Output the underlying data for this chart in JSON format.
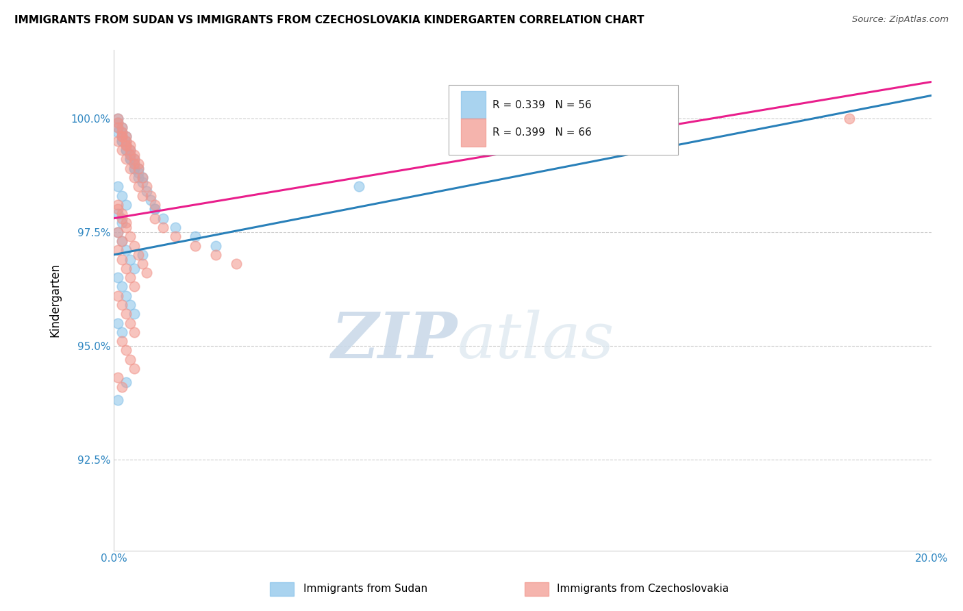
{
  "title": "IMMIGRANTS FROM SUDAN VS IMMIGRANTS FROM CZECHOSLOVAKIA KINDERGARTEN CORRELATION CHART",
  "source": "Source: ZipAtlas.com",
  "ylabel": "Kindergarten",
  "y_ticks": [
    92.5,
    95.0,
    97.5,
    100.0
  ],
  "y_tick_labels": [
    "92.5%",
    "95.0%",
    "97.5%",
    "100.0%"
  ],
  "xlim": [
    0.0,
    0.2
  ],
  "ylim": [
    90.5,
    101.5
  ],
  "x_tick_positions": [
    0.0,
    0.05,
    0.1,
    0.15,
    0.2
  ],
  "x_tick_labels": [
    "0.0%",
    "",
    "",
    "",
    "20.0%"
  ],
  "legend1_label": "R = 0.339   N = 56",
  "legend2_label": "R = 0.399   N = 66",
  "legend1_color": "#85c1e9",
  "legend2_color": "#f1948a",
  "series1_color": "#85c1e9",
  "series2_color": "#f1948a",
  "trendline1_color": "#2980b9",
  "trendline2_color": "#e91e8c",
  "watermark_zip": "ZIP",
  "watermark_atlas": "atlas",
  "sudan_x": [
    0.001,
    0.002,
    0.003,
    0.004,
    0.005,
    0.006,
    0.007,
    0.008,
    0.009,
    0.01,
    0.002,
    0.003,
    0.004,
    0.005,
    0.001,
    0.002,
    0.003,
    0.004,
    0.005,
    0.006,
    0.001,
    0.002,
    0.003,
    0.001,
    0.002,
    0.003,
    0.004,
    0.005,
    0.006,
    0.007,
    0.001,
    0.002,
    0.003,
    0.001,
    0.002,
    0.001,
    0.002,
    0.003,
    0.004,
    0.005,
    0.01,
    0.012,
    0.015,
    0.02,
    0.025,
    0.001,
    0.002,
    0.003,
    0.004,
    0.005,
    0.001,
    0.002,
    0.007,
    0.06,
    0.001,
    0.003
  ],
  "sudan_y": [
    99.8,
    99.6,
    99.4,
    99.2,
    99.0,
    98.8,
    98.6,
    98.4,
    98.2,
    98.0,
    99.5,
    99.3,
    99.1,
    98.9,
    99.7,
    99.5,
    99.3,
    99.1,
    98.9,
    98.7,
    100.0,
    99.8,
    99.6,
    99.9,
    99.7,
    99.5,
    99.3,
    99.1,
    98.9,
    98.7,
    98.5,
    98.3,
    98.1,
    97.9,
    97.7,
    97.5,
    97.3,
    97.1,
    96.9,
    96.7,
    98.0,
    97.8,
    97.6,
    97.4,
    97.2,
    96.5,
    96.3,
    96.1,
    95.9,
    95.7,
    95.5,
    95.3,
    97.0,
    98.5,
    93.8,
    94.2
  ],
  "czech_x": [
    0.001,
    0.002,
    0.003,
    0.004,
    0.005,
    0.006,
    0.007,
    0.008,
    0.009,
    0.01,
    0.002,
    0.003,
    0.004,
    0.005,
    0.001,
    0.002,
    0.003,
    0.004,
    0.005,
    0.006,
    0.001,
    0.002,
    0.003,
    0.001,
    0.002,
    0.003,
    0.004,
    0.005,
    0.006,
    0.007,
    0.001,
    0.002,
    0.003,
    0.001,
    0.002,
    0.001,
    0.002,
    0.003,
    0.004,
    0.005,
    0.01,
    0.012,
    0.015,
    0.02,
    0.025,
    0.001,
    0.002,
    0.003,
    0.004,
    0.005,
    0.03,
    0.001,
    0.002,
    0.003,
    0.004,
    0.005,
    0.006,
    0.007,
    0.008,
    0.18,
    0.002,
    0.003,
    0.004,
    0.005,
    0.001,
    0.002
  ],
  "czech_y": [
    99.9,
    99.7,
    99.5,
    99.3,
    99.1,
    98.9,
    98.7,
    98.5,
    98.3,
    98.1,
    99.6,
    99.4,
    99.2,
    99.0,
    100.0,
    99.8,
    99.6,
    99.4,
    99.2,
    99.0,
    99.8,
    99.6,
    99.4,
    99.5,
    99.3,
    99.1,
    98.9,
    98.7,
    98.5,
    98.3,
    98.1,
    97.9,
    97.7,
    97.5,
    97.3,
    97.1,
    96.9,
    96.7,
    96.5,
    96.3,
    97.8,
    97.6,
    97.4,
    97.2,
    97.0,
    96.1,
    95.9,
    95.7,
    95.5,
    95.3,
    96.8,
    98.0,
    97.8,
    97.6,
    97.4,
    97.2,
    97.0,
    96.8,
    96.6,
    100.0,
    95.1,
    94.9,
    94.7,
    94.5,
    94.3,
    94.1
  ],
  "trendline1_x": [
    0.0,
    0.2
  ],
  "trendline1_y": [
    97.0,
    100.5
  ],
  "trendline2_x": [
    0.0,
    0.2
  ],
  "trendline2_y": [
    97.8,
    100.8
  ]
}
